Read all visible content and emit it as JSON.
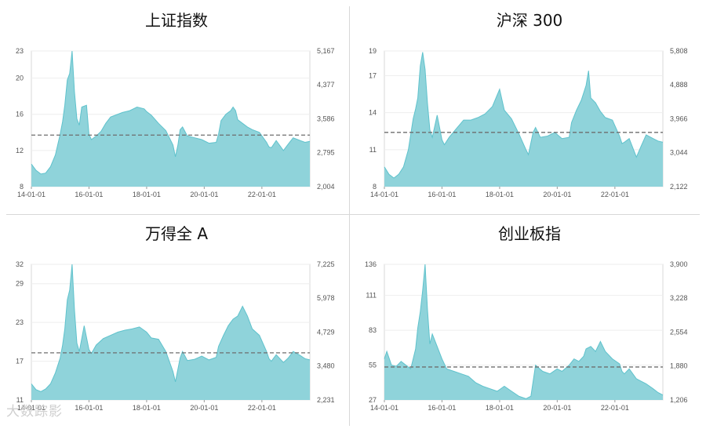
{
  "watermark": "大数踪影",
  "colors": {
    "fill": "#8fd3da",
    "stroke": "#5fc2cc",
    "dash": "#6e6e6e",
    "tick": "#555555",
    "frame": "#d9d9d9"
  },
  "chart_data": [
    {
      "type": "area",
      "title": "上证指数",
      "xlim": [
        "2014-01-01",
        "2023-09-01"
      ],
      "xticks": [
        "14-01-01",
        "16-01-01",
        "18-01-01",
        "20-01-01",
        "22-01-01"
      ],
      "ylim": [
        8,
        23
      ],
      "yticks": [
        8,
        12,
        16,
        20,
        23
      ],
      "ylim_right": [
        2004,
        5167
      ],
      "yticks_right": [
        "2,004",
        "2,795",
        "3,586",
        "4,377",
        "5,167"
      ],
      "reference_line": 13.7,
      "series": [
        {
          "x": [
            "2014-01-01",
            "2014-03-01",
            "2014-05-01",
            "2014-07-01",
            "2014-09-01",
            "2014-11-01",
            "2015-01-01",
            "2015-02-01",
            "2015-03-01",
            "2015-04-01",
            "2015-05-01",
            "2015-06-01",
            "2015-07-01",
            "2015-08-01",
            "2015-09-01",
            "2015-10-01",
            "2015-12-01",
            "2016-01-01",
            "2016-02-01",
            "2016-04-01",
            "2016-06-01",
            "2016-08-01",
            "2016-10-01",
            "2016-12-01",
            "2017-03-01",
            "2017-06-01",
            "2017-09-01",
            "2017-12-01",
            "2018-01-01",
            "2018-03-01",
            "2018-06-01",
            "2018-09-01",
            "2018-12-01",
            "2019-01-01",
            "2019-02-01",
            "2019-03-01",
            "2019-04-01",
            "2019-06-01",
            "2019-09-01",
            "2019-12-01",
            "2020-03-01",
            "2020-06-01",
            "2020-07-01",
            "2020-08-01",
            "2020-10-01",
            "2020-12-01",
            "2021-01-01",
            "2021-02-01",
            "2021-03-01",
            "2021-05-01",
            "2021-07-01",
            "2021-09-01",
            "2021-12-01",
            "2022-03-01",
            "2022-04-01",
            "2022-05-01",
            "2022-07-01",
            "2022-10-01",
            "2022-12-01",
            "2023-02-01",
            "2023-05-01",
            "2023-07-01",
            "2023-09-01"
          ],
          "values": [
            10.5,
            9.8,
            9.4,
            9.5,
            10.2,
            11.5,
            13.8,
            15.2,
            17.0,
            19.8,
            20.5,
            23.0,
            18.5,
            15.5,
            14.8,
            16.8,
            17.0,
            13.8,
            13.2,
            13.6,
            14.1,
            15.0,
            15.7,
            15.9,
            16.2,
            16.4,
            16.8,
            16.6,
            16.3,
            15.9,
            15.0,
            14.2,
            12.6,
            11.3,
            12.6,
            14.3,
            14.6,
            13.6,
            13.4,
            13.2,
            12.8,
            12.9,
            13.8,
            15.3,
            16.0,
            16.4,
            16.8,
            16.4,
            15.4,
            15.0,
            14.6,
            14.3,
            14.0,
            12.9,
            12.4,
            12.3,
            13.1,
            12.0,
            12.7,
            13.4,
            13.1,
            12.9,
            13.0
          ]
        }
      ]
    },
    {
      "type": "area",
      "title": "沪深 300",
      "xlim": [
        "2014-01-01",
        "2023-09-01"
      ],
      "xticks": [
        "14-01-01",
        "16-01-01",
        "18-01-01",
        "20-01-01",
        "22-01-01"
      ],
      "ylim": [
        8,
        19
      ],
      "yticks": [
        8,
        11,
        14,
        17,
        19
      ],
      "ylim_right": [
        2122,
        5808
      ],
      "yticks_right": [
        "2,122",
        "3,044",
        "3,966",
        "4,888",
        "5,808"
      ],
      "reference_line": 12.4,
      "series": [
        {
          "x": [
            "2014-01-01",
            "2014-03-01",
            "2014-05-01",
            "2014-07-01",
            "2014-09-01",
            "2014-11-01",
            "2015-01-01",
            "2015-02-01",
            "2015-03-01",
            "2015-04-01",
            "2015-05-01",
            "2015-06-01",
            "2015-07-01",
            "2015-08-01",
            "2015-09-01",
            "2015-11-01",
            "2016-01-01",
            "2016-02-01",
            "2016-04-01",
            "2016-07-01",
            "2016-10-01",
            "2017-01-01",
            "2017-04-01",
            "2017-07-01",
            "2017-10-01",
            "2018-01-01",
            "2018-03-01",
            "2018-06-01",
            "2018-09-01",
            "2018-12-01",
            "2019-01-01",
            "2019-03-01",
            "2019-04-01",
            "2019-06-01",
            "2019-09-01",
            "2019-12-01",
            "2020-03-01",
            "2020-06-01",
            "2020-07-01",
            "2020-09-01",
            "2020-11-01",
            "2021-01-01",
            "2021-02-01",
            "2021-03-01",
            "2021-05-01",
            "2021-07-01",
            "2021-09-01",
            "2021-12-01",
            "2022-03-01",
            "2022-04-01",
            "2022-05-01",
            "2022-07-01",
            "2022-10-01",
            "2022-12-01",
            "2023-02-01",
            "2023-05-01",
            "2023-07-01",
            "2023-09-01"
          ],
          "values": [
            9.6,
            9.0,
            8.7,
            9.0,
            9.6,
            11.0,
            13.5,
            14.3,
            15.2,
            17.8,
            18.9,
            17.5,
            14.8,
            12.6,
            12.0,
            13.8,
            11.8,
            11.4,
            12.0,
            12.7,
            13.4,
            13.4,
            13.6,
            13.9,
            14.5,
            15.9,
            14.2,
            13.5,
            12.3,
            11.0,
            10.6,
            12.4,
            12.8,
            12.0,
            12.1,
            12.4,
            11.9,
            12.0,
            13.2,
            14.2,
            15.0,
            16.2,
            17.4,
            15.2,
            14.8,
            14.1,
            13.6,
            13.4,
            12.1,
            11.5,
            11.6,
            11.9,
            10.4,
            11.3,
            12.2,
            11.9,
            11.7,
            11.6
          ]
        }
      ]
    },
    {
      "type": "area",
      "title": "万得全 A",
      "xlim": [
        "2014-01-01",
        "2023-09-01"
      ],
      "xticks": [
        "14-01-01",
        "16-01-01",
        "18-01-01",
        "20-01-01",
        "22-01-01"
      ],
      "ylim": [
        11,
        32
      ],
      "yticks": [
        11,
        17,
        23,
        29,
        32
      ],
      "ylim_right": [
        2231,
        7225
      ],
      "yticks_right": [
        "2,231",
        "3,480",
        "4,729",
        "5,978",
        "7,225"
      ],
      "reference_line": 18.3,
      "series": [
        {
          "x": [
            "2014-01-01",
            "2014-03-01",
            "2014-05-01",
            "2014-07-01",
            "2014-09-01",
            "2014-11-01",
            "2015-01-01",
            "2015-02-01",
            "2015-03-01",
            "2015-04-01",
            "2015-05-01",
            "2015-06-01",
            "2015-07-01",
            "2015-08-01",
            "2015-09-01",
            "2015-11-01",
            "2016-01-01",
            "2016-02-01",
            "2016-04-01",
            "2016-07-01",
            "2016-10-01",
            "2017-01-01",
            "2017-04-01",
            "2017-07-01",
            "2017-10-01",
            "2018-01-01",
            "2018-03-01",
            "2018-06-01",
            "2018-09-01",
            "2018-12-01",
            "2019-01-01",
            "2019-03-01",
            "2019-04-01",
            "2019-06-01",
            "2019-09-01",
            "2019-12-01",
            "2020-03-01",
            "2020-06-01",
            "2020-07-01",
            "2020-09-01",
            "2020-11-01",
            "2021-01-01",
            "2021-03-01",
            "2021-05-01",
            "2021-07-01",
            "2021-09-01",
            "2021-12-01",
            "2022-03-01",
            "2022-04-01",
            "2022-05-01",
            "2022-07-01",
            "2022-10-01",
            "2022-12-01",
            "2023-02-01",
            "2023-05-01",
            "2023-07-01",
            "2023-09-01"
          ],
          "values": [
            13.5,
            12.6,
            12.3,
            12.7,
            13.5,
            15.2,
            17.5,
            19.5,
            22.0,
            26.5,
            28.0,
            32.0,
            25.0,
            19.8,
            18.5,
            22.5,
            18.8,
            18.2,
            19.5,
            20.5,
            21.0,
            21.5,
            21.8,
            22.0,
            22.3,
            21.5,
            20.6,
            20.4,
            18.5,
            15.4,
            13.8,
            17.5,
            18.5,
            17.1,
            17.3,
            17.8,
            17.2,
            17.6,
            19.3,
            21.0,
            22.5,
            23.5,
            24.0,
            25.5,
            24.0,
            22.0,
            21.0,
            18.5,
            17.4,
            17.0,
            18.0,
            16.8,
            17.5,
            18.5,
            17.9,
            17.4,
            17.2
          ]
        }
      ]
    },
    {
      "type": "area",
      "title": "创业板指",
      "xlim": [
        "2014-01-01",
        "2023-09-01"
      ],
      "xticks": [
        "14-01-01",
        "16-01-01",
        "18-01-01",
        "20-01-01",
        "22-01-01"
      ],
      "ylim": [
        27,
        136
      ],
      "yticks": [
        27,
        55,
        83,
        111,
        136
      ],
      "ylim_right": [
        1206,
        3900
      ],
      "yticks_right": [
        "1,206",
        "1,880",
        "2,554",
        "3,228",
        "3,900"
      ],
      "reference_line": 53.5,
      "series": [
        {
          "x": [
            "2014-01-01",
            "2014-02-01",
            "2014-04-01",
            "2014-06-01",
            "2014-08-01",
            "2014-10-01",
            "2014-12-01",
            "2015-01-01",
            "2015-02-01",
            "2015-03-01",
            "2015-04-01",
            "2015-05-01",
            "2015-06-01",
            "2015-07-01",
            "2015-08-01",
            "2015-09-01",
            "2015-11-01",
            "2016-01-01",
            "2016-03-01",
            "2016-06-01",
            "2016-09-01",
            "2016-12-01",
            "2017-03-01",
            "2017-06-01",
            "2017-09-01",
            "2017-12-01",
            "2018-03-01",
            "2018-06-01",
            "2018-09-01",
            "2018-12-01",
            "2019-01-01",
            "2019-02-01",
            "2019-04-01",
            "2019-07-01",
            "2019-10-01",
            "2020-01-01",
            "2020-03-01",
            "2020-06-01",
            "2020-08-01",
            "2020-10-01",
            "2020-12-01",
            "2021-01-01",
            "2021-03-01",
            "2021-05-01",
            "2021-07-01",
            "2021-09-01",
            "2021-12-01",
            "2022-03-01",
            "2022-04-01",
            "2022-05-01",
            "2022-07-01",
            "2022-10-01",
            "2022-12-01",
            "2023-02-01",
            "2023-05-01",
            "2023-07-01",
            "2023-09-01"
          ],
          "values": [
            60,
            66,
            55,
            54,
            58,
            55,
            52,
            60,
            68,
            85,
            98,
            115,
            136,
            100,
            72,
            80,
            70,
            60,
            52,
            50,
            48,
            46,
            41,
            38,
            36,
            34,
            38,
            34,
            30,
            28,
            29,
            30,
            55,
            50,
            48,
            52,
            50,
            55,
            60,
            58,
            62,
            68,
            70,
            66,
            74,
            66,
            60,
            56,
            50,
            48,
            52,
            44,
            42,
            40,
            36,
            33,
            31
          ]
        }
      ]
    }
  ]
}
